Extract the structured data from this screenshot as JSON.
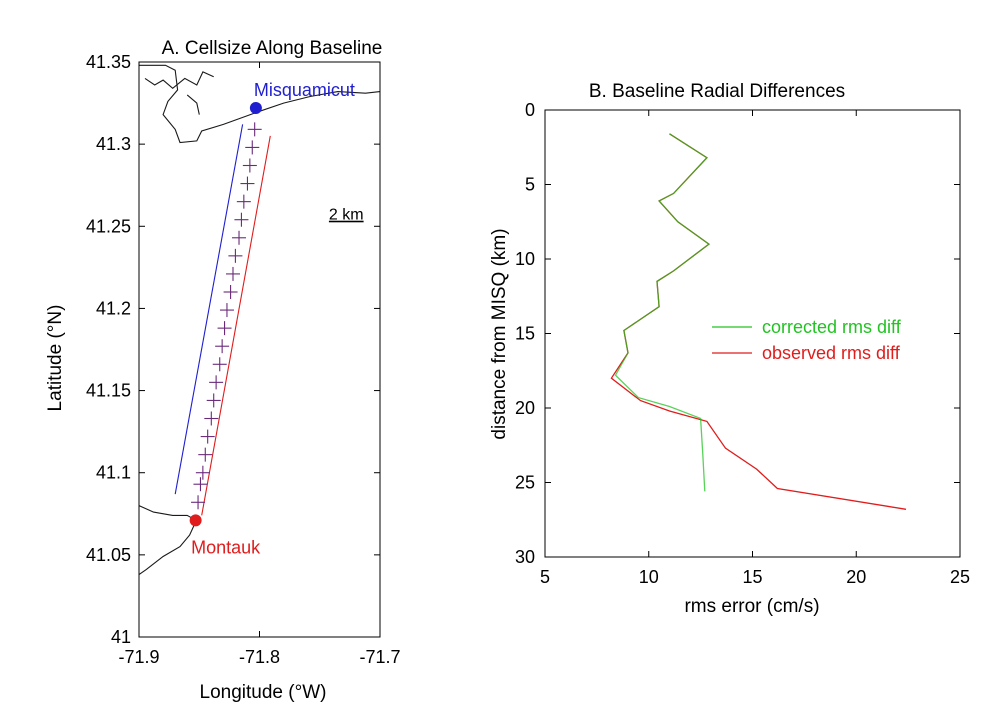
{
  "colors": {
    "blue": "#1f1fd0",
    "red": "#e01c1c",
    "green": "#22c322",
    "olive": "#8a7a2a",
    "marker": "#6a2a7a",
    "coast": "#1a1a1a"
  },
  "chart_data": [
    {
      "type": "line",
      "title": "A. Cellsize Along Baseline",
      "xlabel": "Longitude (°W)",
      "ylabel": "Latitude (°N)",
      "xlim": [
        -71.9,
        -71.7
      ],
      "ylim": [
        41,
        41.35
      ],
      "xticks": [
        -71.9,
        -71.8,
        -71.7
      ],
      "xtick_labels": [
        "-71.9",
        "-71.8",
        "-71.7"
      ],
      "yticks": [
        41,
        41.05,
        41.1,
        41.15,
        41.2,
        41.25,
        41.3,
        41.35
      ],
      "ytick_labels": [
        "41",
        "41.05",
        "41.1",
        "41.15",
        "41.2",
        "41.25",
        "41.3",
        "41.35"
      ],
      "stations": [
        {
          "name": "Misquamicut",
          "lon": -71.803,
          "lat": 41.322,
          "color": "blue"
        },
        {
          "name": "Montauk",
          "lon": -71.853,
          "lat": 41.071,
          "color": "red"
        }
      ],
      "annotation": "2 km",
      "cell_markers": [
        [
          -71.804,
          41.309
        ],
        [
          -71.806,
          41.298
        ],
        [
          -71.808,
          41.287
        ],
        [
          -71.81,
          41.276
        ],
        [
          -71.813,
          41.265
        ],
        [
          -71.815,
          41.254
        ],
        [
          -71.817,
          41.243
        ],
        [
          -71.82,
          41.232
        ],
        [
          -71.822,
          41.221
        ],
        [
          -71.824,
          41.21
        ],
        [
          -71.827,
          41.199
        ],
        [
          -71.829,
          41.188
        ],
        [
          -71.831,
          41.177
        ],
        [
          -71.833,
          41.166
        ],
        [
          -71.836,
          41.155
        ],
        [
          -71.838,
          41.144
        ],
        [
          -71.84,
          41.133
        ],
        [
          -71.843,
          41.122
        ],
        [
          -71.845,
          41.111
        ],
        [
          -71.847,
          41.1
        ],
        [
          -71.849,
          41.093
        ],
        [
          -71.851,
          41.082
        ]
      ],
      "series": [
        {
          "color": "blue",
          "points": [
            [
              -71.87,
              41.087
            ],
            [
              -71.814,
              41.312
            ]
          ]
        },
        {
          "color": "red",
          "points": [
            [
              -71.848,
              41.074
            ],
            [
              -71.791,
              41.305
            ]
          ]
        },
        {
          "color": "coast",
          "points": [
            [
              -71.8,
              41.32
            ],
            [
              -71.83,
              41.312
            ],
            [
              -71.848,
              41.308
            ],
            [
              -71.852,
              41.302
            ],
            [
              -71.866,
              41.301
            ],
            [
              -71.87,
              41.309
            ],
            [
              -71.88,
              41.318
            ],
            [
              -71.876,
              41.326
            ],
            [
              -71.868,
              41.333
            ],
            [
              -71.87,
              41.345
            ],
            [
              -71.878,
              41.348
            ],
            [
              -71.9,
              41.348
            ]
          ]
        },
        {
          "color": "coast",
          "points": [
            [
              -71.8,
              41.32
            ],
            [
              -71.78,
              41.325
            ],
            [
              -71.758,
              41.329
            ],
            [
              -71.735,
              41.332
            ],
            [
              -71.712,
              41.331
            ],
            [
              -71.7,
              41.332
            ]
          ]
        },
        {
          "color": "coast",
          "points": [
            [
              -71.895,
              41.34
            ],
            [
              -71.887,
              41.336
            ],
            [
              -71.88,
              41.339
            ],
            [
              -71.872,
              41.334
            ],
            [
              -71.862,
              41.34
            ],
            [
              -71.852,
              41.336
            ],
            [
              -71.847,
              41.344
            ],
            [
              -71.838,
              41.341
            ]
          ]
        },
        {
          "color": "coast",
          "points": [
            [
              -71.86,
              41.33
            ],
            [
              -71.852,
              41.325
            ],
            [
              -71.85,
              41.318
            ]
          ]
        },
        {
          "color": "coast",
          "points": [
            [
              -71.9,
              41.08
            ],
            [
              -71.888,
              41.076
            ],
            [
              -71.872,
              41.074
            ],
            [
              -71.86,
              41.074
            ],
            [
              -71.855,
              41.072
            ]
          ]
        },
        {
          "color": "coast",
          "points": [
            [
              -71.853,
              41.07
            ],
            [
              -71.858,
              41.062
            ],
            [
              -71.866,
              41.055
            ],
            [
              -71.88,
              41.049
            ],
            [
              -71.894,
              41.041
            ],
            [
              -71.9,
              41.038
            ]
          ]
        }
      ]
    },
    {
      "type": "line",
      "title": "B. Baseline Radial Differences",
      "xlabel": "rms error (cm/s)",
      "ylabel": "distance from MISQ (km)",
      "xlim": [
        5,
        25
      ],
      "ylim": [
        30,
        0
      ],
      "xticks": [
        5,
        10,
        15,
        20,
        25
      ],
      "yticks": [
        0,
        5,
        10,
        15,
        20,
        25,
        30
      ],
      "legend_position": "right",
      "series": [
        {
          "name": "corrected rms diff",
          "color": "green",
          "points": [
            [
              11,
              1.6
            ],
            [
              12.8,
              3.2
            ],
            [
              11.2,
              5.6
            ],
            [
              10.5,
              6.1
            ],
            [
              11.4,
              7.5
            ],
            [
              12.9,
              9
            ],
            [
              11.2,
              10.8
            ],
            [
              10.4,
              11.5
            ],
            [
              10.5,
              13.2
            ],
            [
              8.8,
              14.8
            ],
            [
              9,
              16.3
            ],
            [
              8.4,
              17.8
            ],
            [
              9.5,
              19.3
            ],
            [
              11,
              19.9
            ],
            [
              12.5,
              20.7
            ],
            [
              12.6,
              23
            ],
            [
              12.7,
              25.6
            ]
          ]
        },
        {
          "name": "observed rms diff",
          "color": "red",
          "points": [
            [
              11,
              1.6
            ],
            [
              12.8,
              3.2
            ],
            [
              11.2,
              5.6
            ],
            [
              10.5,
              6.1
            ],
            [
              11.4,
              7.5
            ],
            [
              12.9,
              9
            ],
            [
              11.2,
              10.8
            ],
            [
              10.4,
              11.5
            ],
            [
              10.5,
              13.2
            ],
            [
              8.8,
              14.8
            ],
            [
              9,
              16.3
            ],
            [
              8.2,
              18
            ],
            [
              9.6,
              19.5
            ],
            [
              11,
              20.2
            ],
            [
              12.8,
              20.9
            ],
            [
              13.7,
              22.7
            ],
            [
              15.2,
              24.1
            ],
            [
              16.2,
              25.4
            ],
            [
              22.4,
              26.8
            ]
          ]
        }
      ]
    }
  ]
}
